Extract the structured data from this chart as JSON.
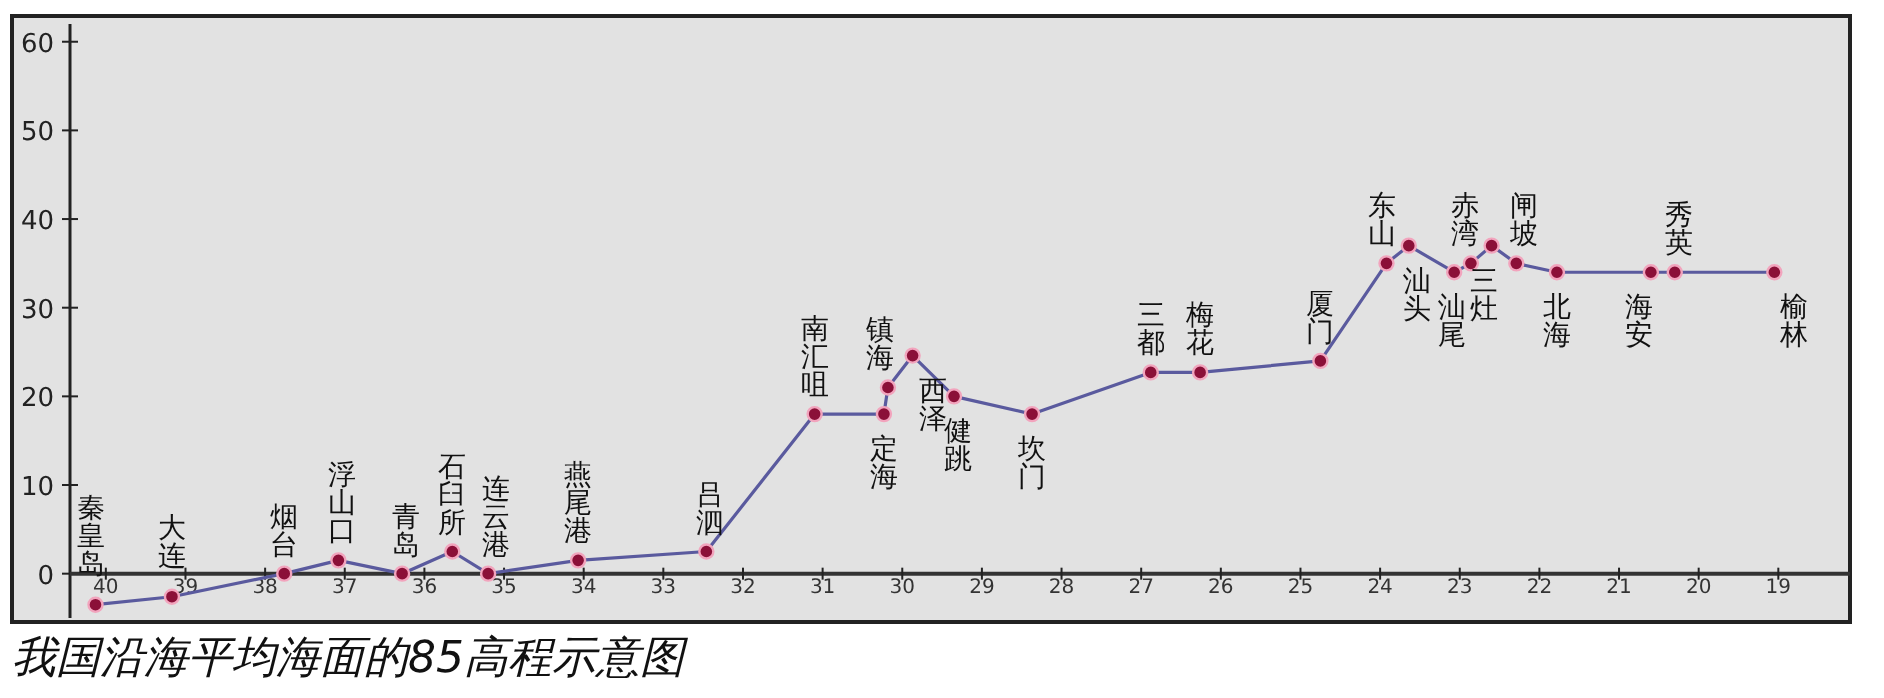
{
  "chart_data": {
    "type": "line",
    "title": "我国沿海平均海面的85高程示意图",
    "x": [
      40.13,
      39.17,
      37.76,
      37.08,
      36.28,
      35.65,
      35.2,
      34.07,
      32.46,
      31.1,
      30.23,
      30.18,
      29.87,
      29.35,
      28.37,
      26.88,
      26.26,
      24.75,
      23.92,
      23.64,
      23.07,
      22.86,
      22.6,
      22.29,
      21.78,
      20.6,
      20.3,
      19.05
    ],
    "series": [
      {
        "color": "#5a5a9e",
        "values": [
          -3.5,
          -2.6,
          0,
          1.5,
          0,
          2.5,
          0,
          1.5,
          2.5,
          18,
          18,
          21,
          24.6,
          20,
          18,
          22.7,
          22.7,
          24,
          35,
          37,
          34,
          35,
          37,
          35,
          34,
          34,
          34,
          34
        ]
      }
    ],
    "annotations": [
      {
        "text": "秦皇岛",
        "x": 40.13,
        "y": -3.5
      },
      {
        "text": "大连",
        "x": 39.17,
        "y": -2.6
      },
      {
        "text": "烟台",
        "x": 37.76,
        "y": 0
      },
      {
        "text": "浮山口",
        "x": 37.08,
        "y": 1.5
      },
      {
        "text": "青岛",
        "x": 36.28,
        "y": 0
      },
      {
        "text": "石臼所",
        "x": 35.65,
        "y": 2.5
      },
      {
        "text": "连云港",
        "x": 35.2,
        "y": 0
      },
      {
        "text": "燕尾港",
        "x": 34.07,
        "y": 1.5
      },
      {
        "text": "吕泗",
        "x": 32.46,
        "y": 2.5
      },
      {
        "text": "南汇咀",
        "x": 31.1,
        "y": 18
      },
      {
        "text": "定海",
        "x": 30.23,
        "y": 18
      },
      {
        "text": "镇海",
        "x": 30.18,
        "y": 21
      },
      {
        "text": "西泽",
        "x": 29.87,
        "y": 24.6
      },
      {
        "text": "健跳",
        "x": 29.35,
        "y": 20
      },
      {
        "text": "坎门",
        "x": 28.37,
        "y": 18
      },
      {
        "text": "三都",
        "x": 26.88,
        "y": 22.7
      },
      {
        "text": "梅花",
        "x": 26.26,
        "y": 22.7
      },
      {
        "text": "厦门",
        "x": 24.75,
        "y": 24
      },
      {
        "text": "东山",
        "x": 23.92,
        "y": 35
      },
      {
        "text": "汕头",
        "x": 23.64,
        "y": 37
      },
      {
        "text": "汕尾",
        "x": 23.07,
        "y": 34
      },
      {
        "text": "赤湾",
        "x": 22.86,
        "y": 35
      },
      {
        "text": "三灶",
        "x": 22.6,
        "y": 37
      },
      {
        "text": "闸坡",
        "x": 22.29,
        "y": 35
      },
      {
        "text": "北海",
        "x": 21.78,
        "y": 34
      },
      {
        "text": "海安",
        "x": 20.6,
        "y": 34
      },
      {
        "text": "秀英",
        "x": 20.3,
        "y": 34
      },
      {
        "text": "榆林",
        "x": 19.05,
        "y": 34
      }
    ],
    "xlim": [
      40.45,
      18.1
    ],
    "xticks": [
      40,
      39,
      38,
      37,
      36,
      35,
      34,
      33,
      32,
      31,
      30,
      29,
      28,
      27,
      26,
      25,
      24,
      23,
      22,
      21,
      20,
      19
    ],
    "ylim": [
      -5,
      62
    ],
    "yticks": [
      0,
      10,
      20,
      30,
      40,
      50,
      60
    ],
    "marker": "circle",
    "grid": false
  }
}
